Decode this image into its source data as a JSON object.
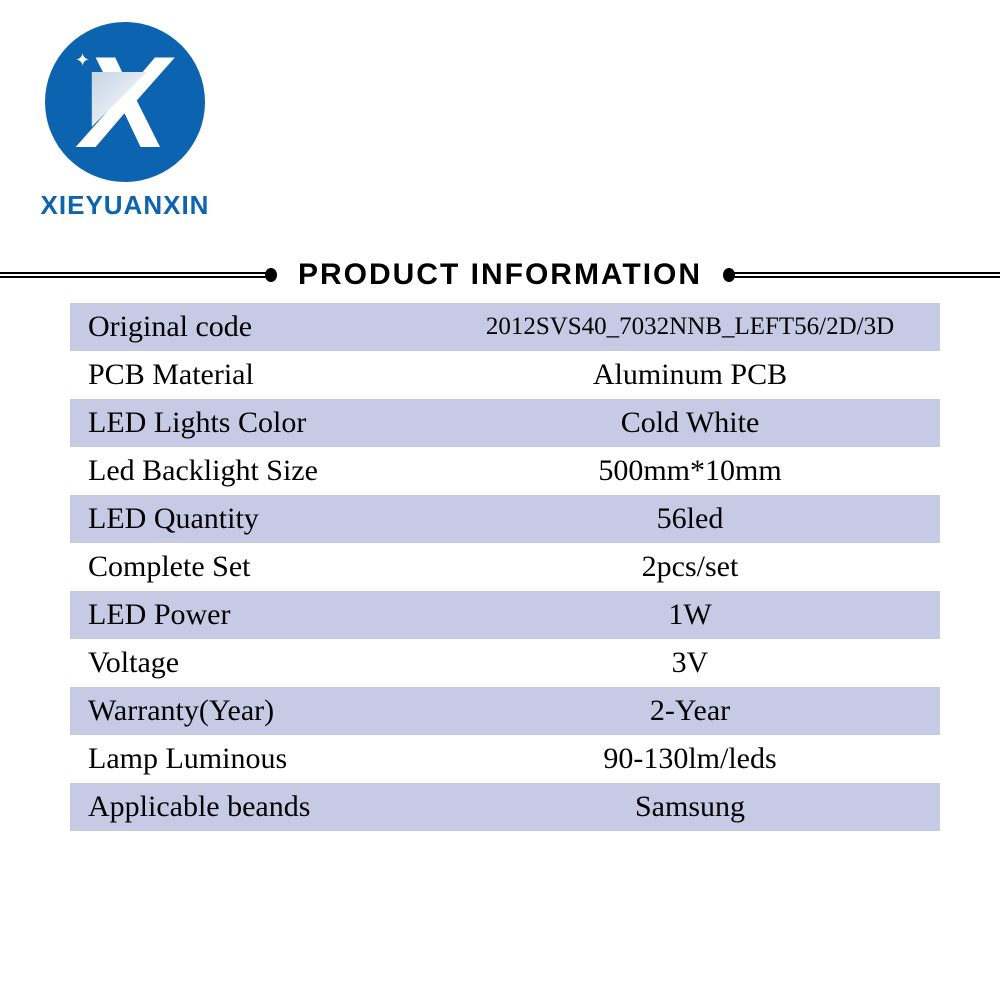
{
  "brand": {
    "logo_letter": "X",
    "name": "XIEYUANXIN",
    "color": "#0c64b0"
  },
  "section_title": "PRODUCT INFORMATION",
  "table": {
    "band_color": "#c6cae4",
    "text_color": "#000000",
    "rows": [
      {
        "label": "Original code",
        "value": "2012SVS40_7032NNB_LEFT56/2D/3D",
        "band": true,
        "small": true
      },
      {
        "label": "PCB Material",
        "value": "Aluminum PCB",
        "band": false,
        "small": false
      },
      {
        "label": "LED Lights Color",
        "value": "Cold White",
        "band": true,
        "small": false
      },
      {
        "label": "Led Backlight Size",
        "value": "500mm*10mm",
        "band": false,
        "small": false
      },
      {
        "label": "LED Quantity",
        "value": "56led",
        "band": true,
        "small": false
      },
      {
        "label": "Complete Set",
        "value": "2pcs/set",
        "band": false,
        "small": false
      },
      {
        "label": "LED Power",
        "value": "1W",
        "band": true,
        "small": false
      },
      {
        "label": "Voltage",
        "value": "3V",
        "band": false,
        "small": false
      },
      {
        "label": "Warranty(Year)",
        "value": "2-Year",
        "band": true,
        "small": false
      },
      {
        "label": "Lamp Luminous",
        "value": "90-130lm/leds",
        "band": false,
        "small": false
      },
      {
        "label": "Applicable beands",
        "value": "Samsung",
        "band": true,
        "small": false
      }
    ]
  }
}
